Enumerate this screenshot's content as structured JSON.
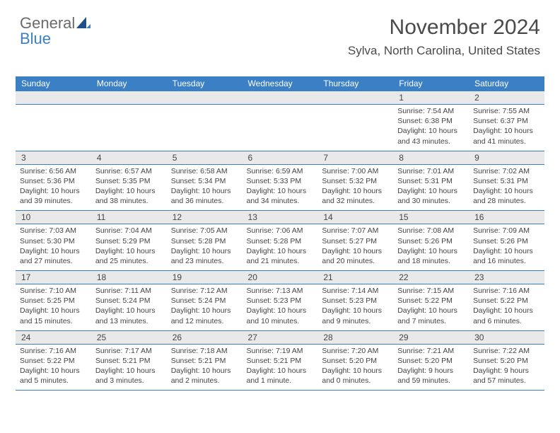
{
  "logo": {
    "line1": "General",
    "line2": "Blue"
  },
  "header": {
    "month_title": "November 2024",
    "location": "Sylva, North Carolina, United States"
  },
  "colors": {
    "header_bg": "#3b7fc4",
    "header_text": "#ffffff",
    "daynum_bg": "#e9e9e9",
    "cell_border": "#3b7fc4",
    "body_text": "#444444",
    "logo_gray": "#6b6b6b",
    "logo_blue": "#3b7fc4"
  },
  "typography": {
    "month_title_fontsize": 30,
    "location_fontsize": 17,
    "day_header_fontsize": 12,
    "daynum_fontsize": 12,
    "cell_fontsize": 10.5
  },
  "day_headers": [
    "Sunday",
    "Monday",
    "Tuesday",
    "Wednesday",
    "Thursday",
    "Friday",
    "Saturday"
  ],
  "weeks": [
    {
      "nums": [
        "",
        "",
        "",
        "",
        "",
        "1",
        "2"
      ],
      "cells": [
        {
          "empty": true
        },
        {
          "empty": true
        },
        {
          "empty": true
        },
        {
          "empty": true
        },
        {
          "empty": true
        },
        {
          "sunrise": "Sunrise: 7:54 AM",
          "sunset": "Sunset: 6:38 PM",
          "daylight": "Daylight: 10 hours and 43 minutes."
        },
        {
          "sunrise": "Sunrise: 7:55 AM",
          "sunset": "Sunset: 6:37 PM",
          "daylight": "Daylight: 10 hours and 41 minutes."
        }
      ]
    },
    {
      "nums": [
        "3",
        "4",
        "5",
        "6",
        "7",
        "8",
        "9"
      ],
      "cells": [
        {
          "sunrise": "Sunrise: 6:56 AM",
          "sunset": "Sunset: 5:36 PM",
          "daylight": "Daylight: 10 hours and 39 minutes."
        },
        {
          "sunrise": "Sunrise: 6:57 AM",
          "sunset": "Sunset: 5:35 PM",
          "daylight": "Daylight: 10 hours and 38 minutes."
        },
        {
          "sunrise": "Sunrise: 6:58 AM",
          "sunset": "Sunset: 5:34 PM",
          "daylight": "Daylight: 10 hours and 36 minutes."
        },
        {
          "sunrise": "Sunrise: 6:59 AM",
          "sunset": "Sunset: 5:33 PM",
          "daylight": "Daylight: 10 hours and 34 minutes."
        },
        {
          "sunrise": "Sunrise: 7:00 AM",
          "sunset": "Sunset: 5:32 PM",
          "daylight": "Daylight: 10 hours and 32 minutes."
        },
        {
          "sunrise": "Sunrise: 7:01 AM",
          "sunset": "Sunset: 5:31 PM",
          "daylight": "Daylight: 10 hours and 30 minutes."
        },
        {
          "sunrise": "Sunrise: 7:02 AM",
          "sunset": "Sunset: 5:31 PM",
          "daylight": "Daylight: 10 hours and 28 minutes."
        }
      ]
    },
    {
      "nums": [
        "10",
        "11",
        "12",
        "13",
        "14",
        "15",
        "16"
      ],
      "cells": [
        {
          "sunrise": "Sunrise: 7:03 AM",
          "sunset": "Sunset: 5:30 PM",
          "daylight": "Daylight: 10 hours and 27 minutes."
        },
        {
          "sunrise": "Sunrise: 7:04 AM",
          "sunset": "Sunset: 5:29 PM",
          "daylight": "Daylight: 10 hours and 25 minutes."
        },
        {
          "sunrise": "Sunrise: 7:05 AM",
          "sunset": "Sunset: 5:28 PM",
          "daylight": "Daylight: 10 hours and 23 minutes."
        },
        {
          "sunrise": "Sunrise: 7:06 AM",
          "sunset": "Sunset: 5:28 PM",
          "daylight": "Daylight: 10 hours and 21 minutes."
        },
        {
          "sunrise": "Sunrise: 7:07 AM",
          "sunset": "Sunset: 5:27 PM",
          "daylight": "Daylight: 10 hours and 20 minutes."
        },
        {
          "sunrise": "Sunrise: 7:08 AM",
          "sunset": "Sunset: 5:26 PM",
          "daylight": "Daylight: 10 hours and 18 minutes."
        },
        {
          "sunrise": "Sunrise: 7:09 AM",
          "sunset": "Sunset: 5:26 PM",
          "daylight": "Daylight: 10 hours and 16 minutes."
        }
      ]
    },
    {
      "nums": [
        "17",
        "18",
        "19",
        "20",
        "21",
        "22",
        "23"
      ],
      "cells": [
        {
          "sunrise": "Sunrise: 7:10 AM",
          "sunset": "Sunset: 5:25 PM",
          "daylight": "Daylight: 10 hours and 15 minutes."
        },
        {
          "sunrise": "Sunrise: 7:11 AM",
          "sunset": "Sunset: 5:24 PM",
          "daylight": "Daylight: 10 hours and 13 minutes."
        },
        {
          "sunrise": "Sunrise: 7:12 AM",
          "sunset": "Sunset: 5:24 PM",
          "daylight": "Daylight: 10 hours and 12 minutes."
        },
        {
          "sunrise": "Sunrise: 7:13 AM",
          "sunset": "Sunset: 5:23 PM",
          "daylight": "Daylight: 10 hours and 10 minutes."
        },
        {
          "sunrise": "Sunrise: 7:14 AM",
          "sunset": "Sunset: 5:23 PM",
          "daylight": "Daylight: 10 hours and 9 minutes."
        },
        {
          "sunrise": "Sunrise: 7:15 AM",
          "sunset": "Sunset: 5:22 PM",
          "daylight": "Daylight: 10 hours and 7 minutes."
        },
        {
          "sunrise": "Sunrise: 7:16 AM",
          "sunset": "Sunset: 5:22 PM",
          "daylight": "Daylight: 10 hours and 6 minutes."
        }
      ]
    },
    {
      "nums": [
        "24",
        "25",
        "26",
        "27",
        "28",
        "29",
        "30"
      ],
      "cells": [
        {
          "sunrise": "Sunrise: 7:16 AM",
          "sunset": "Sunset: 5:22 PM",
          "daylight": "Daylight: 10 hours and 5 minutes."
        },
        {
          "sunrise": "Sunrise: 7:17 AM",
          "sunset": "Sunset: 5:21 PM",
          "daylight": "Daylight: 10 hours and 3 minutes."
        },
        {
          "sunrise": "Sunrise: 7:18 AM",
          "sunset": "Sunset: 5:21 PM",
          "daylight": "Daylight: 10 hours and 2 minutes."
        },
        {
          "sunrise": "Sunrise: 7:19 AM",
          "sunset": "Sunset: 5:21 PM",
          "daylight": "Daylight: 10 hours and 1 minute."
        },
        {
          "sunrise": "Sunrise: 7:20 AM",
          "sunset": "Sunset: 5:20 PM",
          "daylight": "Daylight: 10 hours and 0 minutes."
        },
        {
          "sunrise": "Sunrise: 7:21 AM",
          "sunset": "Sunset: 5:20 PM",
          "daylight": "Daylight: 9 hours and 59 minutes."
        },
        {
          "sunrise": "Sunrise: 7:22 AM",
          "sunset": "Sunset: 5:20 PM",
          "daylight": "Daylight: 9 hours and 57 minutes."
        }
      ]
    }
  ]
}
